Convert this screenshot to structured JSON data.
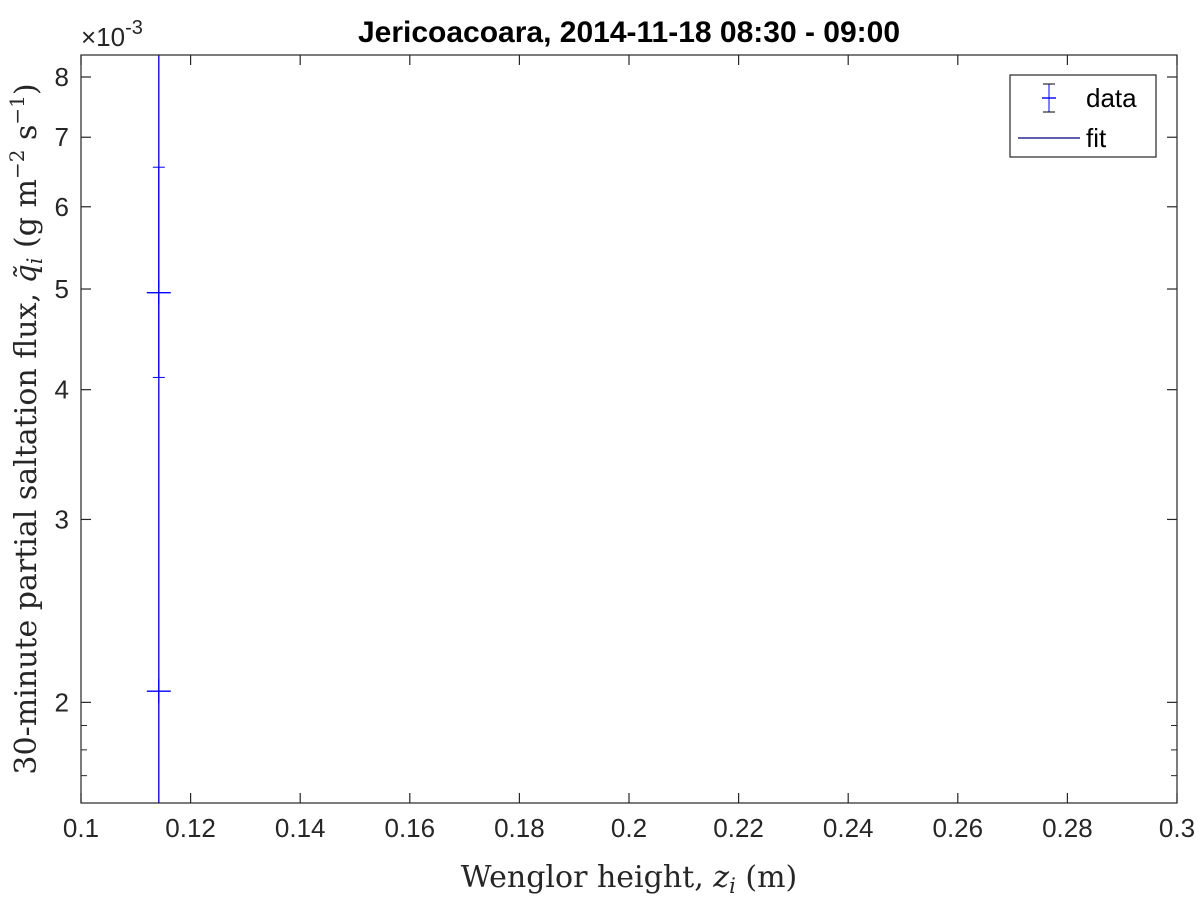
{
  "chart_data": {
    "type": "scatter",
    "title": "Jericoacoara, 2014-11-18 08:30 - 09:00",
    "xlabel": {
      "prefix": "Wenglor height, ",
      "var": "z",
      "sub": "i",
      "suffix": " (m)"
    },
    "ylabel": {
      "prefix": "30-minute partial saltation flux, ",
      "var": "q̃",
      "sub": "i",
      "units_pre": " (g m",
      "exp1": "−2",
      "units_mid": " s",
      "exp2": "−1",
      "units_post": ")"
    },
    "y_exponent": {
      "base": "×10",
      "exp": "-3"
    },
    "xlim": [
      0.1,
      0.3
    ],
    "ylim": [
      0.0016,
      0.0084
    ],
    "yscale": "log",
    "x_ticks": [
      0.1,
      0.12,
      0.14,
      0.16,
      0.18,
      0.2,
      0.22,
      0.24,
      0.26,
      0.28,
      0.3
    ],
    "x_tick_labels": [
      "0.1",
      "0.12",
      "0.14",
      "0.16",
      "0.18",
      "0.2",
      "0.22",
      "0.24",
      "0.26",
      "0.28",
      "0.3"
    ],
    "y_ticks": [
      0.002,
      0.003,
      0.004,
      0.005,
      0.006,
      0.007,
      0.008
    ],
    "y_tick_labels": [
      "2",
      "3",
      "4",
      "5",
      "6",
      "7",
      "8"
    ],
    "y_minor_ticks": [
      0.0017,
      0.0018,
      0.0019
    ],
    "grid": false,
    "legend_position": "top-right",
    "series": [
      {
        "name": "data",
        "kind": "errorbar",
        "color": "#0000ff",
        "points": [
          {
            "x": 0.1142,
            "y": 0.00496,
            "err_low": 0.00085,
            "err_high": 0.0045
          },
          {
            "x": 0.1142,
            "y": 0.00205,
            "err_low": 0.0005,
            "err_high": 0.0045
          }
        ]
      },
      {
        "name": "fit",
        "kind": "line",
        "color": "#000080",
        "x": [
          0.1142,
          0.1142
        ],
        "y": [
          0.0016,
          0.0084
        ]
      }
    ]
  }
}
